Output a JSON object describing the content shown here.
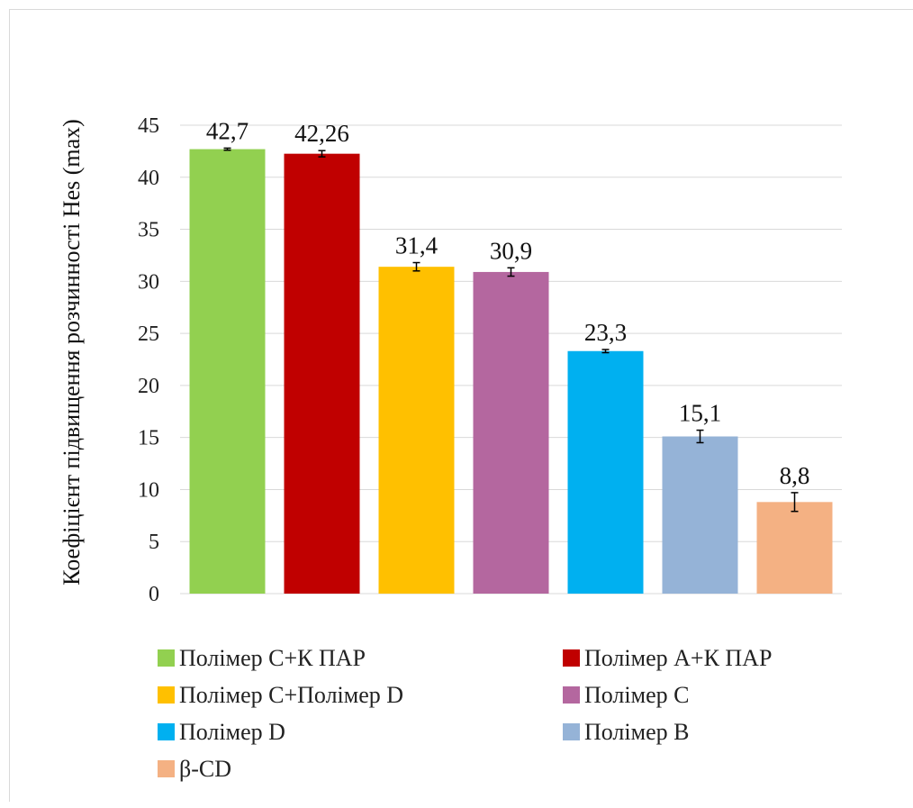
{
  "chart_data": {
    "type": "bar",
    "ylabel": "Коефіцієнт підвищення розчинності Hes (max)",
    "xlabel": "",
    "ylim": [
      0,
      45
    ],
    "yticks": [
      0,
      5,
      10,
      15,
      20,
      25,
      30,
      35,
      40,
      45
    ],
    "grid": true,
    "legend_position": "bottom",
    "categories": [
      "Полімер C+К ПАР",
      "Полімер A+К ПАР",
      "Полімер C+Полімер D",
      "Полімер C",
      "Полімер D",
      "Полімер B",
      "β-CD"
    ],
    "values": [
      42.7,
      42.26,
      31.4,
      30.9,
      23.3,
      15.1,
      8.8
    ],
    "value_labels": [
      "42,7",
      "42,26",
      "31,4",
      "30,9",
      "23,3",
      "15,1",
      "8,8"
    ],
    "errors": [
      0.1,
      0.3,
      0.4,
      0.4,
      0.15,
      0.6,
      0.9
    ],
    "colors": [
      "#92d050",
      "#c00000",
      "#ffc000",
      "#b4679f",
      "#00b0f0",
      "#95b3d7",
      "#f4b183"
    ]
  }
}
